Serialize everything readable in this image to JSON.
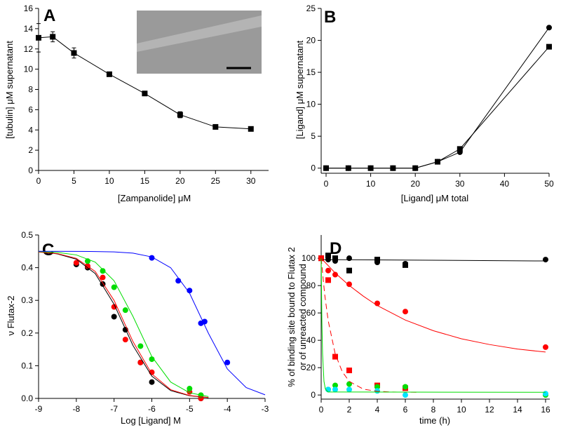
{
  "chart_data": [
    {
      "type": "line",
      "label": "A",
      "xlabel": "[Zampanolide] μM",
      "ylabel": [
        "[tubulin] μM supernatant"
      ],
      "xlim": [
        0,
        32.5
      ],
      "ylim": [
        0,
        16
      ],
      "xticks": [
        0,
        5,
        10,
        15,
        20,
        25,
        30
      ],
      "yticks": [
        0,
        2,
        4,
        6,
        8,
        10,
        12,
        14,
        16
      ],
      "series": [
        {
          "color": "#000000",
          "marker": "square",
          "line": "solid",
          "x": [
            0,
            2,
            5,
            10,
            15,
            20,
            25,
            30
          ],
          "values": [
            13.1,
            13.2,
            11.6,
            9.5,
            7.6,
            5.5,
            4.3,
            4.1
          ],
          "errors": [
            1.4,
            0.5,
            0.5,
            0.1,
            0.1,
            0.3,
            0.1,
            0.1
          ]
        }
      ]
    },
    {
      "type": "line",
      "label": "B",
      "xlabel": "[Ligand] μM total",
      "ylabel": [
        "[Ligand] μM supernatant"
      ],
      "xlim": [
        -1.1,
        50
      ],
      "ylim": [
        -0.8,
        25
      ],
      "xticks": [
        0,
        10,
        20,
        30,
        40,
        50
      ],
      "yticks": [
        0,
        5,
        10,
        15,
        20,
        25
      ],
      "series": [
        {
          "color": "#000000",
          "marker": "circle",
          "line": "solid",
          "x": [
            0,
            5,
            10,
            15,
            20,
            25,
            30,
            50
          ],
          "values": [
            0,
            0,
            0,
            0,
            0,
            1,
            2.5,
            22
          ]
        },
        {
          "color": "#000000",
          "marker": "square",
          "line": "solid",
          "x": [
            0,
            5,
            10,
            15,
            20,
            25,
            30,
            50
          ],
          "values": [
            0,
            0,
            0,
            0,
            0,
            1,
            3,
            19
          ]
        }
      ]
    },
    {
      "type": "scatter",
      "label": "C",
      "xlabel": "Log [Ligand] M",
      "ylabel": [
        "ν Flutax-2"
      ],
      "xlim": [
        -9,
        -3
      ],
      "ylim": [
        0,
        0.5
      ],
      "xticks": [
        -9,
        -8,
        -7,
        -6,
        -5,
        -4,
        -3
      ],
      "yticks": [
        {
          "value": 0,
          "label": "0.0"
        },
        0.1,
        0.2,
        0.3,
        0.4,
        0.5
      ],
      "series": [
        {
          "color": "#000000",
          "marker": "circle",
          "x": [
            -8,
            -7.7,
            -7.3,
            -7,
            -6.7,
            -6.3,
            -6,
            -4.7
          ],
          "values": [
            0.41,
            0.4,
            0.35,
            0.25,
            0.21,
            0.11,
            0.05,
            0
          ]
        },
        {
          "color": "#ff0000",
          "marker": "circle",
          "x": [
            -8,
            -7.7,
            -7.3,
            -7,
            -6.7,
            -6.3,
            -6,
            -5,
            -4.7
          ],
          "values": [
            0.415,
            0.405,
            0.37,
            0.28,
            0.18,
            0.11,
            0.08,
            0.02,
            0
          ]
        },
        {
          "color": "#00dd00",
          "marker": "circle",
          "x": [
            -7.7,
            -7.3,
            -7,
            -6.7,
            -6.3,
            -6,
            -5,
            -4.7
          ],
          "values": [
            0.42,
            0.39,
            0.34,
            0.27,
            0.16,
            0.12,
            0.03,
            0.01
          ]
        },
        {
          "color": "#0000ff",
          "marker": "circle",
          "x": [
            -6,
            -5.3,
            -5,
            -4.7,
            -4.6,
            -4
          ],
          "values": [
            0.43,
            0.36,
            0.33,
            0.23,
            0.235,
            0.11
          ]
        },
        {
          "color": "#000000",
          "marker": "none",
          "line": "solid",
          "x": [
            -9,
            -8.5,
            -8,
            -7.5,
            -7,
            -6.5,
            -6,
            -5.5,
            -5,
            -4.5
          ],
          "values": [
            0.4497,
            0.4421,
            0.426,
            0.382,
            0.288,
            0.162,
            0.068,
            0.024,
            0.0079,
            0.0025
          ]
        },
        {
          "color": "#ff0000",
          "marker": "none",
          "line": "solid",
          "x": [
            -9,
            -8.5,
            -8,
            -7.5,
            -7,
            -6.5,
            -6,
            -5.5,
            -5,
            -4.5
          ],
          "values": [
            0.4478,
            0.443,
            0.4285,
            0.3885,
            0.2998,
            0.174,
            0.0749,
            0.0267,
            0.0088,
            0.0028
          ]
        },
        {
          "color": "#00dd00",
          "marker": "none",
          "line": "solid",
          "x": [
            -9,
            -8.5,
            -8,
            -7.5,
            -7,
            -6.5,
            -6,
            -5.5,
            -5,
            -4.5
          ],
          "values": [
            0.4489,
            0.4465,
            0.439,
            0.417,
            0.36,
            0.251,
            0.128,
            0.05,
            0.0172,
            0.0056
          ]
        },
        {
          "color": "#0000ff",
          "marker": "none",
          "line": "solid",
          "x": [
            -9,
            -8,
            -7.5,
            -7,
            -6.5,
            -6,
            -5.5,
            -5,
            -4.5,
            -4,
            -3.5,
            -3
          ],
          "values": [
            0.45,
            0.4498,
            0.4494,
            0.4482,
            0.4444,
            0.4328,
            0.3997,
            0.3219,
            0.199,
            0.0903,
            0.0331,
            0.011
          ]
        }
      ]
    },
    {
      "type": "scatter",
      "label": "D",
      "xlabel": "time (h)",
      "ylabel": [
        "% of binding site bound to Flutax 2",
        "or of unreacted compound"
      ],
      "xlim": [
        0,
        16.3
      ],
      "ylim": [
        -3,
        117
      ],
      "xticks": [
        0,
        2,
        4,
        6,
        8,
        10,
        12,
        14,
        16
      ],
      "yticks": [
        0,
        20,
        40,
        60,
        80,
        100
      ],
      "series": [
        {
          "color": "#000000",
          "marker": "circle",
          "x": [
            0.5,
            1,
            2,
            4,
            6,
            16
          ],
          "values": [
            99,
            98,
            100,
            97,
            96,
            99
          ]
        },
        {
          "color": "#000000",
          "marker": "square",
          "x": [
            0,
            0.5,
            1,
            2,
            4,
            6
          ],
          "values": [
            100,
            102,
            100,
            91,
            99,
            95
          ]
        },
        {
          "color": "#ff0000",
          "marker": "circle",
          "x": [
            0,
            0.5,
            1,
            2,
            4,
            6,
            16
          ],
          "values": [
            100,
            91,
            88,
            81,
            67,
            61,
            35
          ]
        },
        {
          "color": "#ff0000",
          "marker": "square",
          "x": [
            0,
            0.5,
            1,
            2,
            4,
            6
          ],
          "values": [
            100,
            84,
            28,
            18,
            7,
            5
          ]
        },
        {
          "color": "#00dd00",
          "marker": "circle",
          "x": [
            0.5,
            1,
            2,
            4,
            6,
            16
          ],
          "values": [
            4,
            7,
            8,
            6,
            6,
            0
          ]
        },
        {
          "color": "#00e5ff",
          "marker": "circle",
          "x": [
            0.5,
            1,
            2,
            4,
            6,
            16
          ],
          "values": [
            4,
            4,
            4,
            3,
            0,
            1
          ]
        },
        {
          "color": "#000000",
          "marker": "none",
          "line": "solid",
          "x": [
            0,
            16
          ],
          "values": [
            99,
            98
          ]
        },
        {
          "color": "#ff0000",
          "marker": "none",
          "line": "solid",
          "x": [
            0,
            1,
            2,
            3,
            4,
            6,
            8,
            10,
            12,
            14,
            16
          ],
          "values": [
            100,
            89.2,
            80.1,
            72.3,
            65.4,
            54.8,
            47,
            41.1,
            36.9,
            33.6,
            31.4
          ]
        },
        {
          "color": "#ff0000",
          "marker": "none",
          "line": "dashed",
          "x": [
            0,
            0.25,
            0.5,
            1,
            1.5,
            2,
            3,
            4,
            5,
            7
          ],
          "values": [
            100,
            73.6,
            54.4,
            30.1,
            17.1,
            10,
            4.3,
            2.7,
            2.2,
            2
          ]
        },
        {
          "color": "#00dd00",
          "marker": "none",
          "line": "solid",
          "x": [
            0,
            0.05,
            0.1,
            0.2,
            0.3,
            0.5,
            16
          ],
          "values": [
            100,
            54.4,
            30.1,
            10,
            4.3,
            2.2,
            2
          ]
        }
      ]
    }
  ]
}
